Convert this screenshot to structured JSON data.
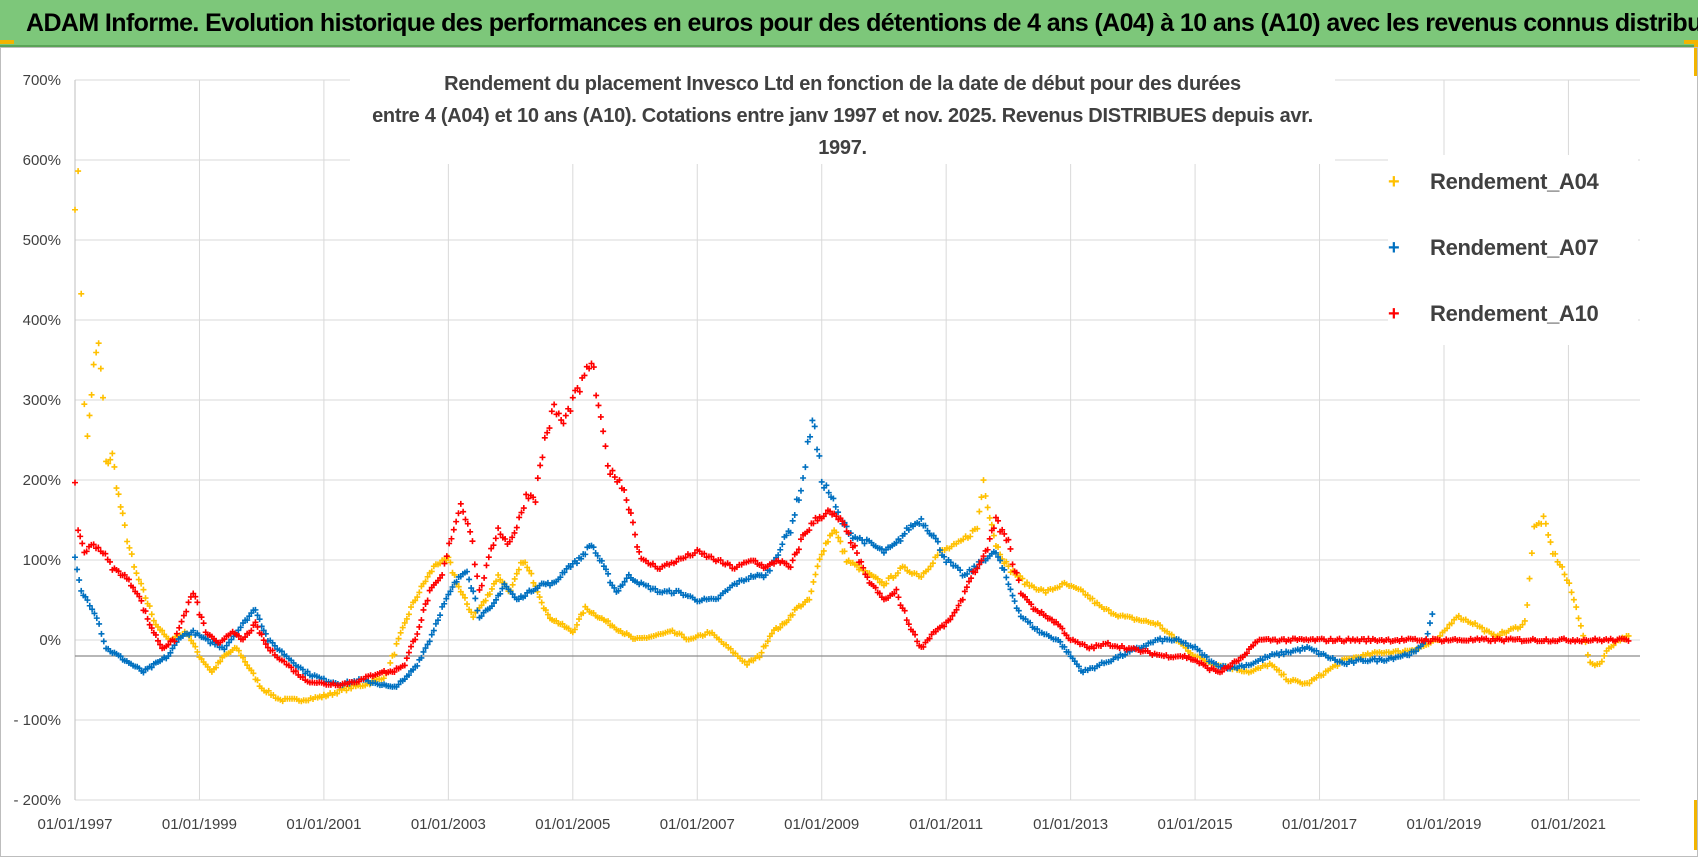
{
  "banner": {
    "title": "ADAM Informe. Evolution historique des performances en euros pour des détentions de 4 ans (A04) à 10 ans (A10) avec les revenus connus distribués"
  },
  "colors": {
    "banner": "#7dc77a",
    "A04": "#ffc000",
    "A07": "#0070c0",
    "A10": "#ff0000",
    "grid": "#d9d9d9",
    "text": "#404040"
  },
  "chart_data": {
    "type": "scatter",
    "title_line1": "Rendement du placement Invesco Ltd en fonction de la date de début pour des durées",
    "title_line2": "entre 4 (A04) et 10 ans (A10).  Cotations entre janv 1997 et nov. 2025. Revenus DISTRIBUES depuis avr. 1997.",
    "xlabel": "",
    "ylabel": "",
    "x_range": [
      1997.0,
      2022.15
    ],
    "y_range": [
      -200,
      700
    ],
    "y_ticks": [
      "- 200%",
      "- 100%",
      "0%",
      "100%",
      "200%",
      "300%",
      "400%",
      "500%",
      "600%",
      "700%"
    ],
    "y_tick_values": [
      -200,
      -100,
      0,
      100,
      200,
      300,
      400,
      500,
      600,
      700
    ],
    "x_ticks": [
      "01/01/1997",
      "01/01/1999",
      "01/01/2001",
      "01/01/2003",
      "01/01/2005",
      "01/01/2007",
      "01/01/2009",
      "01/01/2011",
      "01/01/2013",
      "01/01/2015",
      "01/01/2017",
      "01/01/2019",
      "01/01/2021"
    ],
    "x_tick_values": [
      1997,
      1999,
      2001,
      2003,
      2005,
      2007,
      2009,
      2011,
      2013,
      2015,
      2017,
      2019,
      2021
    ],
    "legend_position": "top-right",
    "series": [
      {
        "name": "Rendement_A04",
        "x": [
          1997.0,
          1997.05,
          1997.1,
          1997.15,
          1997.2,
          1997.3,
          1997.38,
          1997.45,
          1997.5,
          1997.6,
          1997.7,
          1997.8,
          1997.95,
          1998.1,
          1998.3,
          1998.5,
          1998.8,
          1999.0,
          1999.2,
          1999.4,
          1999.6,
          1999.8,
          2000.0,
          2000.3,
          2000.6,
          2000.9,
          2001.1,
          2001.4,
          2001.7,
          2002.0,
          2002.2,
          2002.4,
          2002.6,
          2002.8,
          2003.0,
          2003.2,
          2003.4,
          2003.6,
          2003.8,
          2004.0,
          2004.2,
          2004.4,
          2004.6,
          2004.8,
          2005.0,
          2005.2,
          2005.4,
          2005.6,
          2005.8,
          2006.0,
          2006.3,
          2006.6,
          2006.9,
          2007.2,
          2007.5,
          2007.8,
          2008.0,
          2008.2,
          2008.4,
          2008.6,
          2008.8,
          2009.0,
          2009.2,
          2009.4,
          2009.6,
          2009.8,
          2010.0,
          2010.3,
          2010.6,
          2010.9,
          2011.2,
          2011.5,
          2011.6,
          2011.8,
          2012.0,
          2012.3,
          2012.6,
          2012.9,
          2013.2,
          2013.5,
          2013.8,
          2014.1,
          2014.4,
          2014.7,
          2015.0,
          2015.3,
          2015.6,
          2015.9,
          2016.2,
          2016.5,
          2016.8,
          2017.1,
          2017.4,
          2017.7,
          2018.0,
          2018.3,
          2018.6,
          2018.9,
          2019.2,
          2019.5,
          2019.8,
          2020.0,
          2020.15,
          2020.3,
          2020.45,
          2020.6,
          2020.75,
          2020.9,
          2021.05,
          2021.2,
          2021.35,
          2021.5,
          2021.65,
          2021.8,
          2022.0
        ],
        "values": [
          550,
          570,
          440,
          300,
          250,
          340,
          370,
          300,
          220,
          230,
          180,
          140,
          90,
          60,
          20,
          0,
          10,
          -20,
          -40,
          -20,
          -10,
          -35,
          -60,
          -75,
          -75,
          -72,
          -68,
          -60,
          -55,
          -45,
          0,
          40,
          70,
          95,
          100,
          60,
          30,
          50,
          80,
          60,
          100,
          70,
          30,
          20,
          10,
          40,
          30,
          20,
          10,
          0,
          5,
          10,
          0,
          10,
          -10,
          -30,
          -20,
          10,
          20,
          40,
          50,
          110,
          140,
          100,
          90,
          80,
          70,
          90,
          80,
          110,
          120,
          140,
          200,
          120,
          90,
          70,
          60,
          70,
          60,
          40,
          30,
          25,
          20,
          0,
          -20,
          -30,
          -35,
          -40,
          -30,
          -50,
          -55,
          -40,
          -25,
          -20,
          -15,
          -15,
          -10,
          0,
          30,
          20,
          5,
          10,
          15,
          20,
          140,
          150,
          110,
          90,
          60,
          20,
          -30,
          -30,
          -10,
          0,
          5
        ]
      },
      {
        "name": "Rendement_A07",
        "x": [
          1997.0,
          1997.1,
          1997.2,
          1997.35,
          1997.5,
          1997.7,
          1997.9,
          1998.1,
          1998.3,
          1998.5,
          1998.7,
          1998.9,
          1999.1,
          1999.4,
          1999.7,
          1999.9,
          2000.1,
          2000.4,
          2000.7,
          2001.0,
          2001.3,
          2001.6,
          2001.9,
          2002.1,
          2002.3,
          2002.5,
          2002.7,
          2002.9,
          2003.1,
          2003.3,
          2003.5,
          2003.7,
          2003.9,
          2004.1,
          2004.3,
          2004.5,
          2004.7,
          2004.9,
          2005.1,
          2005.3,
          2005.5,
          2005.7,
          2005.9,
          2006.1,
          2006.4,
          2006.7,
          2007.0,
          2007.3,
          2007.6,
          2007.9,
          2008.1,
          2008.3,
          2008.5,
          2008.7,
          2008.85,
          2009.0,
          2009.15,
          2009.3,
          2009.5,
          2009.8,
          2010.0,
          2010.2,
          2010.4,
          2010.6,
          2010.8,
          2011.0,
          2011.3,
          2011.6,
          2011.8,
          2012.0,
          2012.2,
          2012.5,
          2012.8,
          2013.0,
          2013.2,
          2013.5,
          2013.8,
          2014.1,
          2014.4,
          2014.7,
          2015.0,
          2015.3,
          2015.6,
          2015.9,
          2016.2,
          2016.5,
          2016.8,
          2017.1,
          2017.4,
          2017.7,
          2018.0,
          2018.3,
          2018.55,
          2018.7,
          2018.85
        ],
        "values": [
          100,
          60,
          50,
          30,
          -10,
          -20,
          -30,
          -40,
          -30,
          -20,
          5,
          10,
          0,
          -10,
          20,
          40,
          0,
          -20,
          -40,
          -50,
          -55,
          -50,
          -55,
          -60,
          -50,
          -30,
          0,
          40,
          70,
          90,
          30,
          40,
          70,
          50,
          60,
          70,
          70,
          90,
          100,
          120,
          90,
          60,
          80,
          70,
          60,
          60,
          50,
          50,
          70,
          80,
          80,
          110,
          140,
          200,
          280,
          200,
          180,
          150,
          130,
          120,
          110,
          120,
          140,
          150,
          130,
          100,
          80,
          100,
          110,
          70,
          30,
          10,
          0,
          -20,
          -40,
          -30,
          -20,
          -10,
          0,
          0,
          -10,
          -30,
          -35,
          -30,
          -20,
          -15,
          -10,
          -20,
          -30,
          -25,
          -25,
          -20,
          -15,
          0,
          40
        ]
      },
      {
        "name": "Rendement_A10",
        "x": [
          1997.0,
          1997.05,
          1997.15,
          1997.3,
          1997.45,
          1997.6,
          1997.8,
          1998.0,
          1998.2,
          1998.4,
          1998.6,
          1998.75,
          1998.9,
          1999.1,
          1999.3,
          1999.5,
          1999.7,
          1999.9,
          2000.1,
          2000.4,
          2000.7,
          2001.0,
          2001.3,
          2001.6,
          2001.9,
          2002.1,
          2002.3,
          2002.5,
          2002.7,
          2002.9,
          2003.05,
          2003.2,
          2003.35,
          2003.5,
          2003.65,
          2003.8,
          2003.95,
          2004.1,
          2004.25,
          2004.4,
          2004.55,
          2004.7,
          2004.85,
          2005.0,
          2005.15,
          2005.3,
          2005.45,
          2005.6,
          2005.75,
          2005.9,
          2006.1,
          2006.4,
          2006.7,
          2007.0,
          2007.3,
          2007.6,
          2007.9,
          2008.1,
          2008.3,
          2008.5,
          2008.7,
          2008.9,
          2009.1,
          2009.3,
          2009.5,
          2009.7,
          2009.9,
          2010.0,
          2010.2,
          2010.4,
          2010.6,
          2010.8,
          2011.0,
          2011.2,
          2011.4,
          2011.6,
          2011.8,
          2012.0,
          2012.2,
          2012.4,
          2012.6,
          2012.8,
          2013.0,
          2013.3,
          2013.6,
          2013.9,
          2014.2,
          2014.5,
          2014.8,
          2015.0,
          2015.2,
          2015.4,
          2015.6,
          2015.8,
          2016.0,
          2016.5,
          2017.0,
          2017.5,
          2018.0,
          2018.5,
          2019.0,
          2019.5,
          2020.0,
          2020.5,
          2021.0,
          2021.5,
          2022.0
        ],
        "values": [
          190,
          140,
          110,
          120,
          110,
          90,
          80,
          60,
          20,
          -10,
          0,
          30,
          60,
          10,
          -5,
          10,
          0,
          20,
          -10,
          -30,
          -50,
          -55,
          -55,
          -50,
          -40,
          -40,
          -30,
          10,
          60,
          80,
          130,
          170,
          140,
          60,
          100,
          140,
          120,
          140,
          180,
          180,
          250,
          290,
          270,
          300,
          320,
          350,
          270,
          210,
          200,
          170,
          100,
          90,
          100,
          110,
          100,
          90,
          100,
          90,
          100,
          90,
          130,
          150,
          160,
          150,
          120,
          80,
          60,
          50,
          60,
          20,
          -10,
          10,
          20,
          40,
          80,
          100,
          150,
          120,
          60,
          40,
          30,
          20,
          0,
          -10,
          -5,
          -10,
          -15,
          -20,
          -20,
          -25,
          -35,
          -40,
          -30,
          -20,
          0,
          0,
          0,
          0,
          0,
          0,
          0,
          0,
          0,
          0,
          0,
          0,
          0
        ]
      }
    ]
  }
}
